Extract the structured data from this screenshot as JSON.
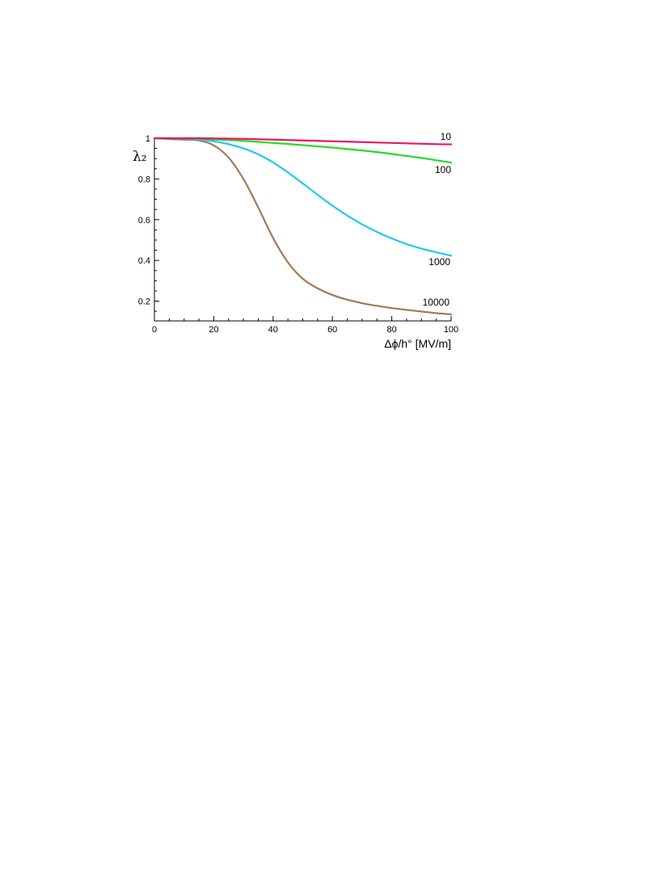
{
  "chart_data": {
    "type": "line",
    "title": "",
    "xlabel": "Δϕ/h° [MV/m]",
    "ylabel": "λ₂",
    "xlim": [
      0,
      100
    ],
    "ylim": [
      0.1,
      1.0
    ],
    "x_ticks": [
      0,
      20,
      40,
      60,
      80,
      100
    ],
    "x_tick_labels": [
      "0",
      "20",
      "40",
      "60",
      "80",
      "100"
    ],
    "y_ticks": [
      0.2,
      0.4,
      0.6,
      0.8,
      1.0
    ],
    "y_tick_labels": [
      "0.2",
      "0.4",
      "0.6",
      "0.8",
      "1"
    ],
    "grid": false,
    "legend": "none",
    "x": [
      0,
      5,
      10,
      15,
      20,
      25,
      30,
      35,
      40,
      45,
      50,
      55,
      60,
      65,
      70,
      75,
      80,
      85,
      90,
      95,
      100
    ],
    "series": [
      {
        "name": "10",
        "color": "#e8156b",
        "values": [
          1.0,
          1.0,
          1.0,
          1.0,
          0.999,
          0.998,
          0.997,
          0.995,
          0.993,
          0.991,
          0.989,
          0.987,
          0.985,
          0.983,
          0.981,
          0.979,
          0.977,
          0.975,
          0.973,
          0.971,
          0.97
        ]
      },
      {
        "name": "100",
        "color": "#22dd22",
        "values": [
          1.0,
          1.0,
          0.999,
          0.997,
          0.994,
          0.991,
          0.987,
          0.982,
          0.977,
          0.972,
          0.966,
          0.96,
          0.954,
          0.947,
          0.94,
          0.932,
          0.923,
          0.913,
          0.903,
          0.892,
          0.88
        ]
      },
      {
        "name": "1000",
        "color": "#22c8ee",
        "values": [
          1.0,
          1.0,
          0.998,
          0.993,
          0.985,
          0.971,
          0.95,
          0.921,
          0.881,
          0.832,
          0.778,
          0.722,
          0.669,
          0.62,
          0.577,
          0.54,
          0.508,
          0.48,
          0.458,
          0.44,
          0.423
        ]
      },
      {
        "name": "10000",
        "color": "#a07a58",
        "values": [
          1.0,
          0.996,
          0.993,
          0.989,
          0.965,
          0.905,
          0.8,
          0.66,
          0.51,
          0.39,
          0.31,
          0.263,
          0.23,
          0.207,
          0.19,
          0.177,
          0.166,
          0.157,
          0.149,
          0.141,
          0.135
        ]
      }
    ]
  }
}
